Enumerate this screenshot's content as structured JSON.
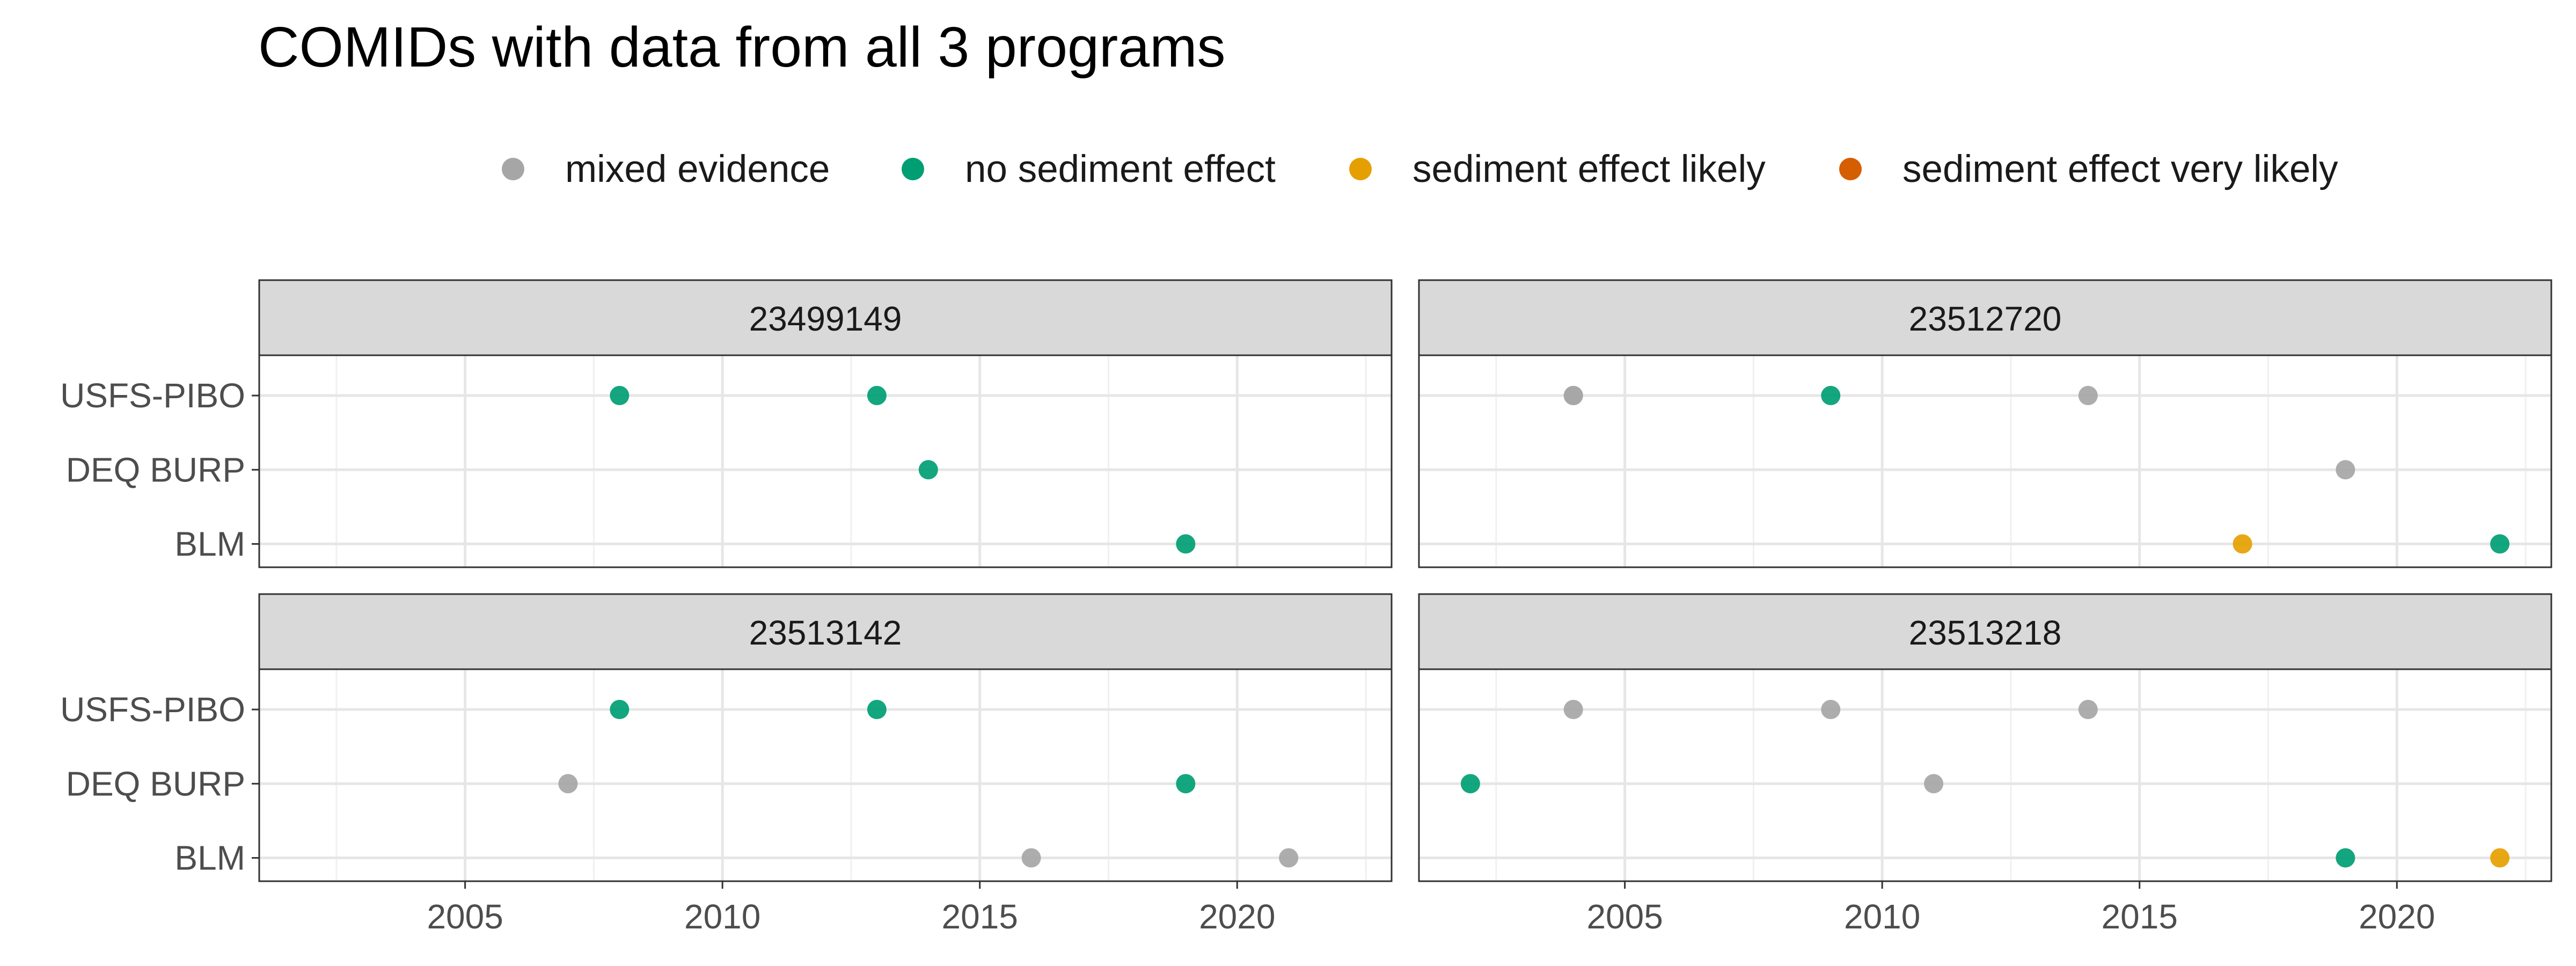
{
  "title": "COMIDs with data from all 3 programs",
  "legend": {
    "items": [
      {
        "label": "mixed evidence",
        "color": "#a6a6a6"
      },
      {
        "label": "no sediment effect",
        "color": "#009e73"
      },
      {
        "label": "sediment effect likely",
        "color": "#e69f00"
      },
      {
        "label": "sediment effect very likely",
        "color": "#d55e00"
      }
    ]
  },
  "chart_data": {
    "type": "scatter",
    "title": "COMIDs with data from all 3 programs",
    "xlabel": "",
    "ylabel": "",
    "xlim": [
      2001,
      2023
    ],
    "x_ticks": [
      2005,
      2010,
      2015,
      2020
    ],
    "y_categories": [
      "USFS-PIBO",
      "DEQ BURP",
      "BLM"
    ],
    "grid": true,
    "legend_position": "top",
    "categories_color": {
      "mixed evidence": "#a6a6a6",
      "no sediment effect": "#009e73",
      "sediment effect likely": "#e69f00",
      "sediment effect very likely": "#d55e00"
    },
    "panels": [
      {
        "label": "23499149",
        "points": [
          {
            "x": 2008,
            "y": "USFS-PIBO",
            "category": "no sediment effect"
          },
          {
            "x": 2013,
            "y": "USFS-PIBO",
            "category": "no sediment effect"
          },
          {
            "x": 2014,
            "y": "DEQ BURP",
            "category": "no sediment effect"
          },
          {
            "x": 2019,
            "y": "BLM",
            "category": "no sediment effect"
          }
        ]
      },
      {
        "label": "23512720",
        "points": [
          {
            "x": 2004,
            "y": "USFS-PIBO",
            "category": "mixed evidence"
          },
          {
            "x": 2004,
            "y": "USFS-PIBO",
            "category": "mixed evidence"
          },
          {
            "x": 2009,
            "y": "USFS-PIBO",
            "category": "no sediment effect"
          },
          {
            "x": 2014,
            "y": "USFS-PIBO",
            "category": "mixed evidence"
          },
          {
            "x": 2019,
            "y": "DEQ BURP",
            "category": "mixed evidence"
          },
          {
            "x": 2017,
            "y": "BLM",
            "category": "sediment effect likely"
          },
          {
            "x": 2022,
            "y": "BLM",
            "category": "no sediment effect"
          }
        ]
      },
      {
        "label": "23513142",
        "points": [
          {
            "x": 2008,
            "y": "USFS-PIBO",
            "category": "no sediment effect"
          },
          {
            "x": 2013,
            "y": "USFS-PIBO",
            "category": "no sediment effect"
          },
          {
            "x": 2007,
            "y": "DEQ BURP",
            "category": "mixed evidence"
          },
          {
            "x": 2019,
            "y": "DEQ BURP",
            "category": "no sediment effect"
          },
          {
            "x": 2016,
            "y": "BLM",
            "category": "mixed evidence"
          },
          {
            "x": 2021,
            "y": "BLM",
            "category": "mixed evidence"
          }
        ]
      },
      {
        "label": "23513218",
        "points": [
          {
            "x": 2004,
            "y": "USFS-PIBO",
            "category": "mixed evidence"
          },
          {
            "x": 2009,
            "y": "USFS-PIBO",
            "category": "mixed evidence"
          },
          {
            "x": 2014,
            "y": "USFS-PIBO",
            "category": "mixed evidence"
          },
          {
            "x": 2002,
            "y": "DEQ BURP",
            "category": "no sediment effect"
          },
          {
            "x": 2011,
            "y": "DEQ BURP",
            "category": "mixed evidence"
          },
          {
            "x": 2019,
            "y": "BLM",
            "category": "no sediment effect"
          },
          {
            "x": 2022,
            "y": "BLM",
            "category": "sediment effect likely"
          }
        ]
      }
    ]
  }
}
